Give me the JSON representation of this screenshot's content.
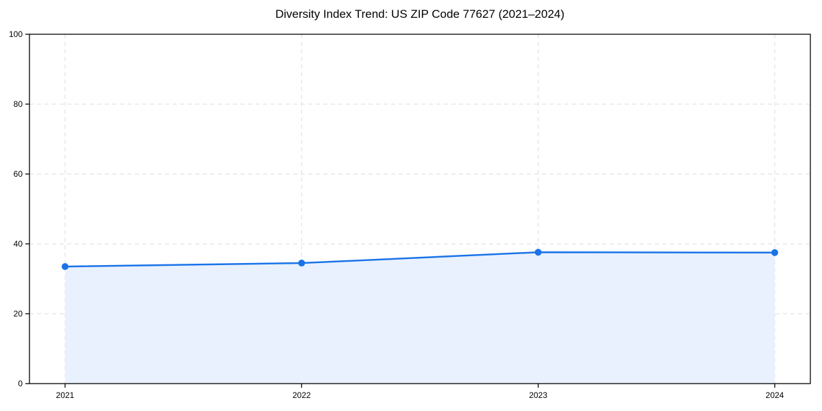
{
  "figure": {
    "background": "#ffffff"
  },
  "chart_data": {
    "type": "area",
    "title": "Diversity Index Trend: US ZIP Code 77627 (2021–2024)",
    "categories": [
      "2021",
      "2022",
      "2023",
      "2024"
    ],
    "series": [
      {
        "name": "Diversity Index",
        "values": [
          33.5,
          34.5,
          37.6,
          37.5
        ]
      }
    ],
    "xlabel": "",
    "ylabel": "",
    "ylim": [
      0,
      100
    ],
    "yticks": [
      0,
      20,
      40,
      60,
      80,
      100
    ],
    "grid": true,
    "grid_style": "dashed",
    "legend_position": "none",
    "marker": "circle",
    "colors": {
      "line": "#1a73e8",
      "marker": "#1a73e8",
      "fill": "#e8f1fd",
      "grid": "#dcdcdc",
      "spine": "#000000",
      "tick": "#000000",
      "tick_label": "#000000",
      "title": "#000000"
    }
  }
}
